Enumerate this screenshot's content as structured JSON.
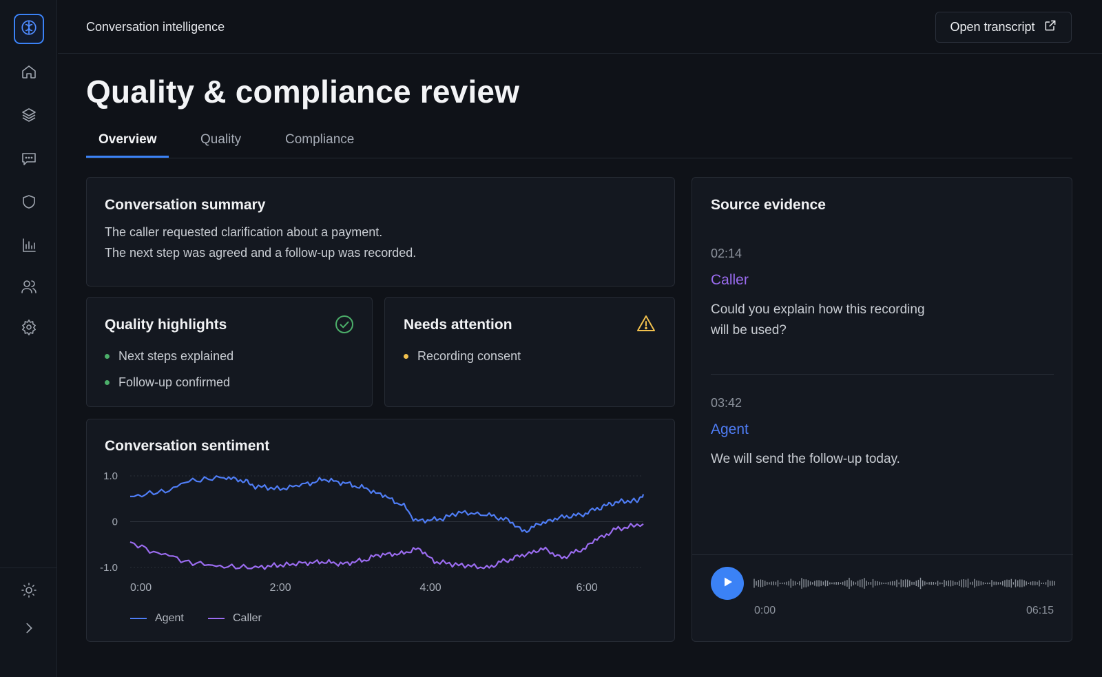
{
  "app": {
    "breadcrumb": "Conversation intelligence",
    "open_transcript_label": "Open transcript",
    "page_title": "Quality & compliance review"
  },
  "sidebar": {
    "items": [
      {
        "icon": "home-icon"
      },
      {
        "icon": "layers-icon"
      },
      {
        "icon": "chat-icon"
      },
      {
        "icon": "shield-icon"
      },
      {
        "icon": "bar-chart-icon"
      },
      {
        "icon": "users-icon"
      },
      {
        "icon": "gear-icon"
      }
    ],
    "bottom": [
      {
        "icon": "sun-icon"
      },
      {
        "icon": "chevron-right-icon"
      }
    ]
  },
  "tabs": [
    {
      "label": "Overview",
      "active": true
    },
    {
      "label": "Quality",
      "active": false
    },
    {
      "label": "Compliance",
      "active": false
    }
  ],
  "summary": {
    "title": "Conversation summary",
    "lines": [
      "The caller requested clarification about a payment.",
      "The next step was agreed and a follow-up was recorded."
    ]
  },
  "quality_highlights": {
    "title": "Quality highlights",
    "icon": "check-circle-icon",
    "items": [
      "Next steps explained",
      "Follow-up confirmed"
    ],
    "color": "#4caf6a"
  },
  "needs_attention": {
    "title": "Needs attention",
    "icon": "warning-icon",
    "items": [
      "Recording consent"
    ],
    "color": "#f2c14e"
  },
  "sentiment": {
    "title": "Conversation sentiment"
  },
  "chart_data": {
    "type": "line",
    "title": "Conversation sentiment",
    "y_ticks": [
      "1.0",
      "0",
      "-1.0"
    ],
    "x_ticks": [
      "0:00",
      "2:00",
      "4:00",
      "6:00"
    ],
    "ylim": [
      -1.0,
      1.0
    ],
    "xlim": [
      0,
      410
    ],
    "grid": true,
    "legend_position": "bottom-left",
    "series": [
      {
        "name": "Agent",
        "color": "#4f7df5",
        "x": [
          0,
          25,
          50,
          75,
          90,
          100,
          120,
          140,
          155,
          170,
          185,
          200,
          215,
          230,
          245,
          265,
          285,
          300,
          315,
          330,
          345,
          360,
          375,
          385,
          395,
          405,
          410
        ],
        "y": [
          0.55,
          0.65,
          0.9,
          0.97,
          0.9,
          0.77,
          0.72,
          0.82,
          0.92,
          0.85,
          0.75,
          0.6,
          0.4,
          0.02,
          0.05,
          0.2,
          0.15,
          0.05,
          -0.2,
          -0.02,
          0.1,
          0.15,
          0.3,
          0.4,
          0.45,
          0.45,
          0.6
        ]
      },
      {
        "name": "Caller",
        "color": "#9b6cf0",
        "x": [
          0,
          25,
          50,
          75,
          100,
          120,
          140,
          155,
          170,
          185,
          200,
          215,
          230,
          245,
          265,
          285,
          300,
          315,
          330,
          345,
          360,
          375,
          390,
          410
        ],
        "y": [
          -0.48,
          -0.7,
          -0.9,
          -0.98,
          -1.0,
          -0.95,
          -0.9,
          -0.88,
          -0.92,
          -0.85,
          -0.72,
          -0.7,
          -0.6,
          -0.88,
          -0.95,
          -1.0,
          -0.85,
          -0.72,
          -0.6,
          -0.78,
          -0.62,
          -0.35,
          -0.15,
          -0.05
        ]
      }
    ]
  },
  "evidence": {
    "title": "Source evidence",
    "items": [
      {
        "time": "02:14",
        "speaker": "Caller",
        "speaker_color": "#9b6cf0",
        "quote_lines": [
          "Could you explain how this recording",
          "will be used?"
        ]
      },
      {
        "time": "03:42",
        "speaker": "Agent",
        "speaker_color": "#4f7df5",
        "quote_lines": [
          "We will send the follow-up today."
        ]
      }
    ],
    "player": {
      "current_time": "0:00",
      "duration": "06:15",
      "progress": 0
    }
  }
}
